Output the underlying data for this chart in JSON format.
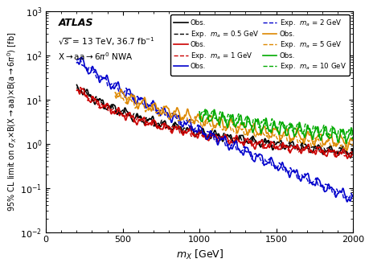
{
  "title_atlas": "ATLAS",
  "subtitle1": "√s = 13 TeV, 36.7 fb⁻¹",
  "subtitle2": "X→aa→6π⁰ NWA",
  "xlabel": "m_{X} [GeV]",
  "ylabel": "95% CL limit on σ_X×B(X→aa)×B(a→6π⁰) [fb]",
  "xlim": [
    0,
    2000
  ],
  "ylim": [
    0.01,
    1000
  ],
  "colors": {
    "black": "#000000",
    "red": "#cc0000",
    "blue": "#0000cc",
    "orange": "#dd8800",
    "green": "#00aa00"
  },
  "legend_entries": [
    {
      "label_obs": "Obs.",
      "label_exp": "Exp.  m_a = 0.5 GeV",
      "color": "#000000"
    },
    {
      "label_obs": "Obs.",
      "label_exp": "Exp.  m_a = 1 GeV",
      "color": "#cc0000"
    },
    {
      "label_obs": "Obs.",
      "label_exp": "Exp.  m_a = 2 GeV",
      "color": "#0000cc"
    },
    {
      "label_obs": "Obs.",
      "label_exp": "Exp.  m_a = 5 GeV",
      "color": "#dd8800"
    },
    {
      "label_obs": "Obs.",
      "label_exp": "Exp.  m_a = 10 GeV",
      "color": "#009900"
    }
  ]
}
